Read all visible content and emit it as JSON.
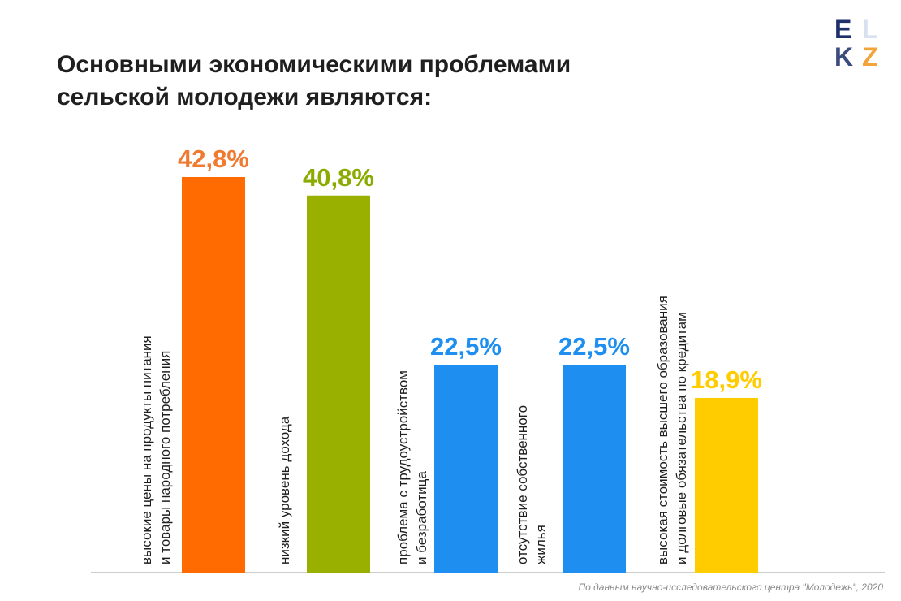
{
  "title": {
    "line1": "Основными экономическими проблемами",
    "line2": "сельской молодежи являются:"
  },
  "logo": {
    "letters": [
      "E",
      "L",
      "K",
      "Z"
    ]
  },
  "source": "По данным научно-исследовательского центра \"Молодежь\", 2020",
  "chart_data": {
    "type": "bar",
    "title": "Основными экономическими проблемами сельской молодежи являются:",
    "categories": [
      [
        "высокие цены на продукты питания",
        "и товары народного потребления"
      ],
      [
        "низкий уровень дохода"
      ],
      [
        "проблема с трудоустройством",
        "и безработица"
      ],
      [
        "отсутствие собственного",
        "жилья"
      ],
      [
        "высокая стоимость высшего образования",
        "и долговые обязательства по кредитам"
      ]
    ],
    "values": [
      42.8,
      40.8,
      22.5,
      22.5,
      18.9
    ],
    "value_labels": [
      "42,8%",
      "40,8%",
      "22,5%",
      "22,5%",
      "18,9%"
    ],
    "colors": [
      "#ff6b00",
      "#99b000",
      "#1e8ff0",
      "#1e8ff0",
      "#ffcc00"
    ],
    "label_colors": [
      "#f07a30",
      "#8aab00",
      "#1e8ff0",
      "#1e8ff0",
      "#ffcc00"
    ],
    "ylim": [
      0,
      50
    ],
    "grid": false,
    "legend": "none"
  }
}
